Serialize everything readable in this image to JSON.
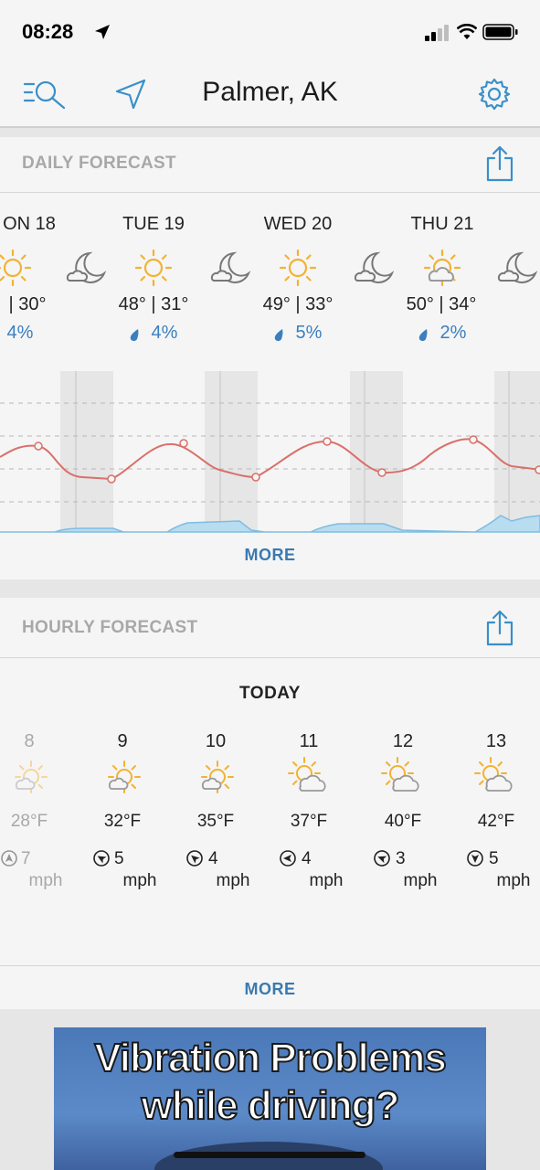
{
  "status": {
    "time": "08:28"
  },
  "header": {
    "location": "Palmer, AK"
  },
  "daily": {
    "title": "DAILY FORECAST",
    "more_label": "MORE",
    "days": [
      {
        "label": "ON 18",
        "temps": "| 30°",
        "precip": "4%"
      },
      {
        "label": "TUE 19",
        "temps": "48° | 31°",
        "precip": "4%"
      },
      {
        "label": "WED 20",
        "temps": "49° | 33°",
        "precip": "5%"
      },
      {
        "label": "THU 21",
        "temps": "50° | 34°",
        "precip": "2%"
      }
    ]
  },
  "hourly": {
    "title": "HOURLY FORECAST",
    "day_label": "TODAY",
    "more_label": "MORE",
    "hours": [
      {
        "hour": "8",
        "temp": "28°F",
        "wind": "7",
        "unit": "mph"
      },
      {
        "hour": "9",
        "temp": "32°F",
        "wind": "5",
        "unit": "mph"
      },
      {
        "hour": "10",
        "temp": "35°F",
        "wind": "4",
        "unit": "mph"
      },
      {
        "hour": "11",
        "temp": "37°F",
        "wind": "4",
        "unit": "mph"
      },
      {
        "hour": "12",
        "temp": "40°F",
        "wind": "3",
        "unit": "mph"
      },
      {
        "hour": "13",
        "temp": "42°F",
        "wind": "5",
        "unit": "mph"
      }
    ]
  },
  "ad": {
    "line1": "Vibration Problems",
    "line2": "while driving?"
  },
  "colors": {
    "accent": "#3a8fc9",
    "sun": "#f2b233",
    "temp_line": "#d9706a",
    "precip_fill": "#9ccbe8"
  }
}
